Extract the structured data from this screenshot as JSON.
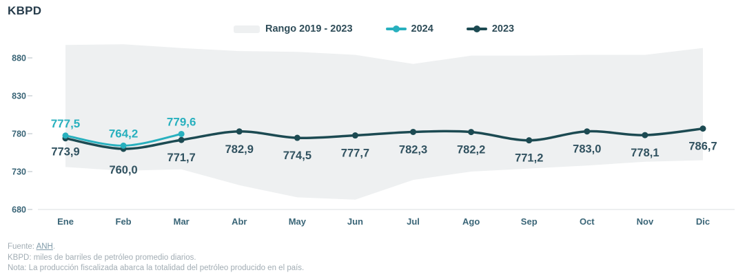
{
  "title": "KBPD",
  "legend": {
    "range_label": "Rango 2019 - 2023",
    "label_2024": "2024",
    "label_2023": "2023"
  },
  "colors": {
    "accent_2024": "#28b0be",
    "accent_2023": "#1c4a52",
    "band_fill": "#eef0f1",
    "axis_text": "#3a6577",
    "value_label_2023": "#315260",
    "title_text": "#263c4b",
    "gridline": "#e7eaec",
    "tick_dash": "#d9dee1",
    "footer_text": "#a2adb4",
    "link_text": "#7e99a8"
  },
  "chart_data": {
    "type": "line",
    "title": "KBPD",
    "categories": [
      "Ene",
      "Feb",
      "Mar",
      "Abr",
      "May",
      "Jun",
      "Jul",
      "Ago",
      "Sep",
      "Oct",
      "Nov",
      "Dic"
    ],
    "yticks": [
      880,
      830,
      780,
      730,
      680
    ],
    "ylim": [
      665,
      910
    ],
    "grid": false,
    "legend_position": "top",
    "series": [
      {
        "name": "2023",
        "values": [
          773.9,
          760.0,
          771.7,
          782.9,
          774.5,
          777.7,
          782.3,
          782.2,
          771.2,
          783.0,
          778.1,
          786.7
        ],
        "labels": [
          "773,9",
          "760,0",
          "771,7",
          "782,9",
          "774,5",
          "777,7",
          "782,3",
          "782,2",
          "771,2",
          "783,0",
          "778,1",
          "786,7"
        ]
      },
      {
        "name": "2024",
        "values": [
          777.5,
          764.2,
          779.6
        ],
        "labels": [
          "777,5",
          "764,2",
          "779,6"
        ]
      }
    ],
    "band": {
      "name": "Rango 2019 - 2023",
      "upper": [
        897,
        898,
        893,
        889,
        888,
        884,
        872,
        883,
        883,
        884,
        884,
        893
      ],
      "lower": [
        736,
        731,
        733,
        712,
        696,
        693,
        719,
        730,
        734,
        738,
        743,
        745
      ]
    }
  },
  "footer": {
    "fuente_prefix": "Fuente: ",
    "fuente_link": "ANH",
    "fuente_suffix": ".",
    "line2": "KBPD: miles de barriles de petróleo promedio diarios.",
    "line3": "Nota: La producción fiscalizada abarca la totalidad del petróleo producido en el país."
  }
}
